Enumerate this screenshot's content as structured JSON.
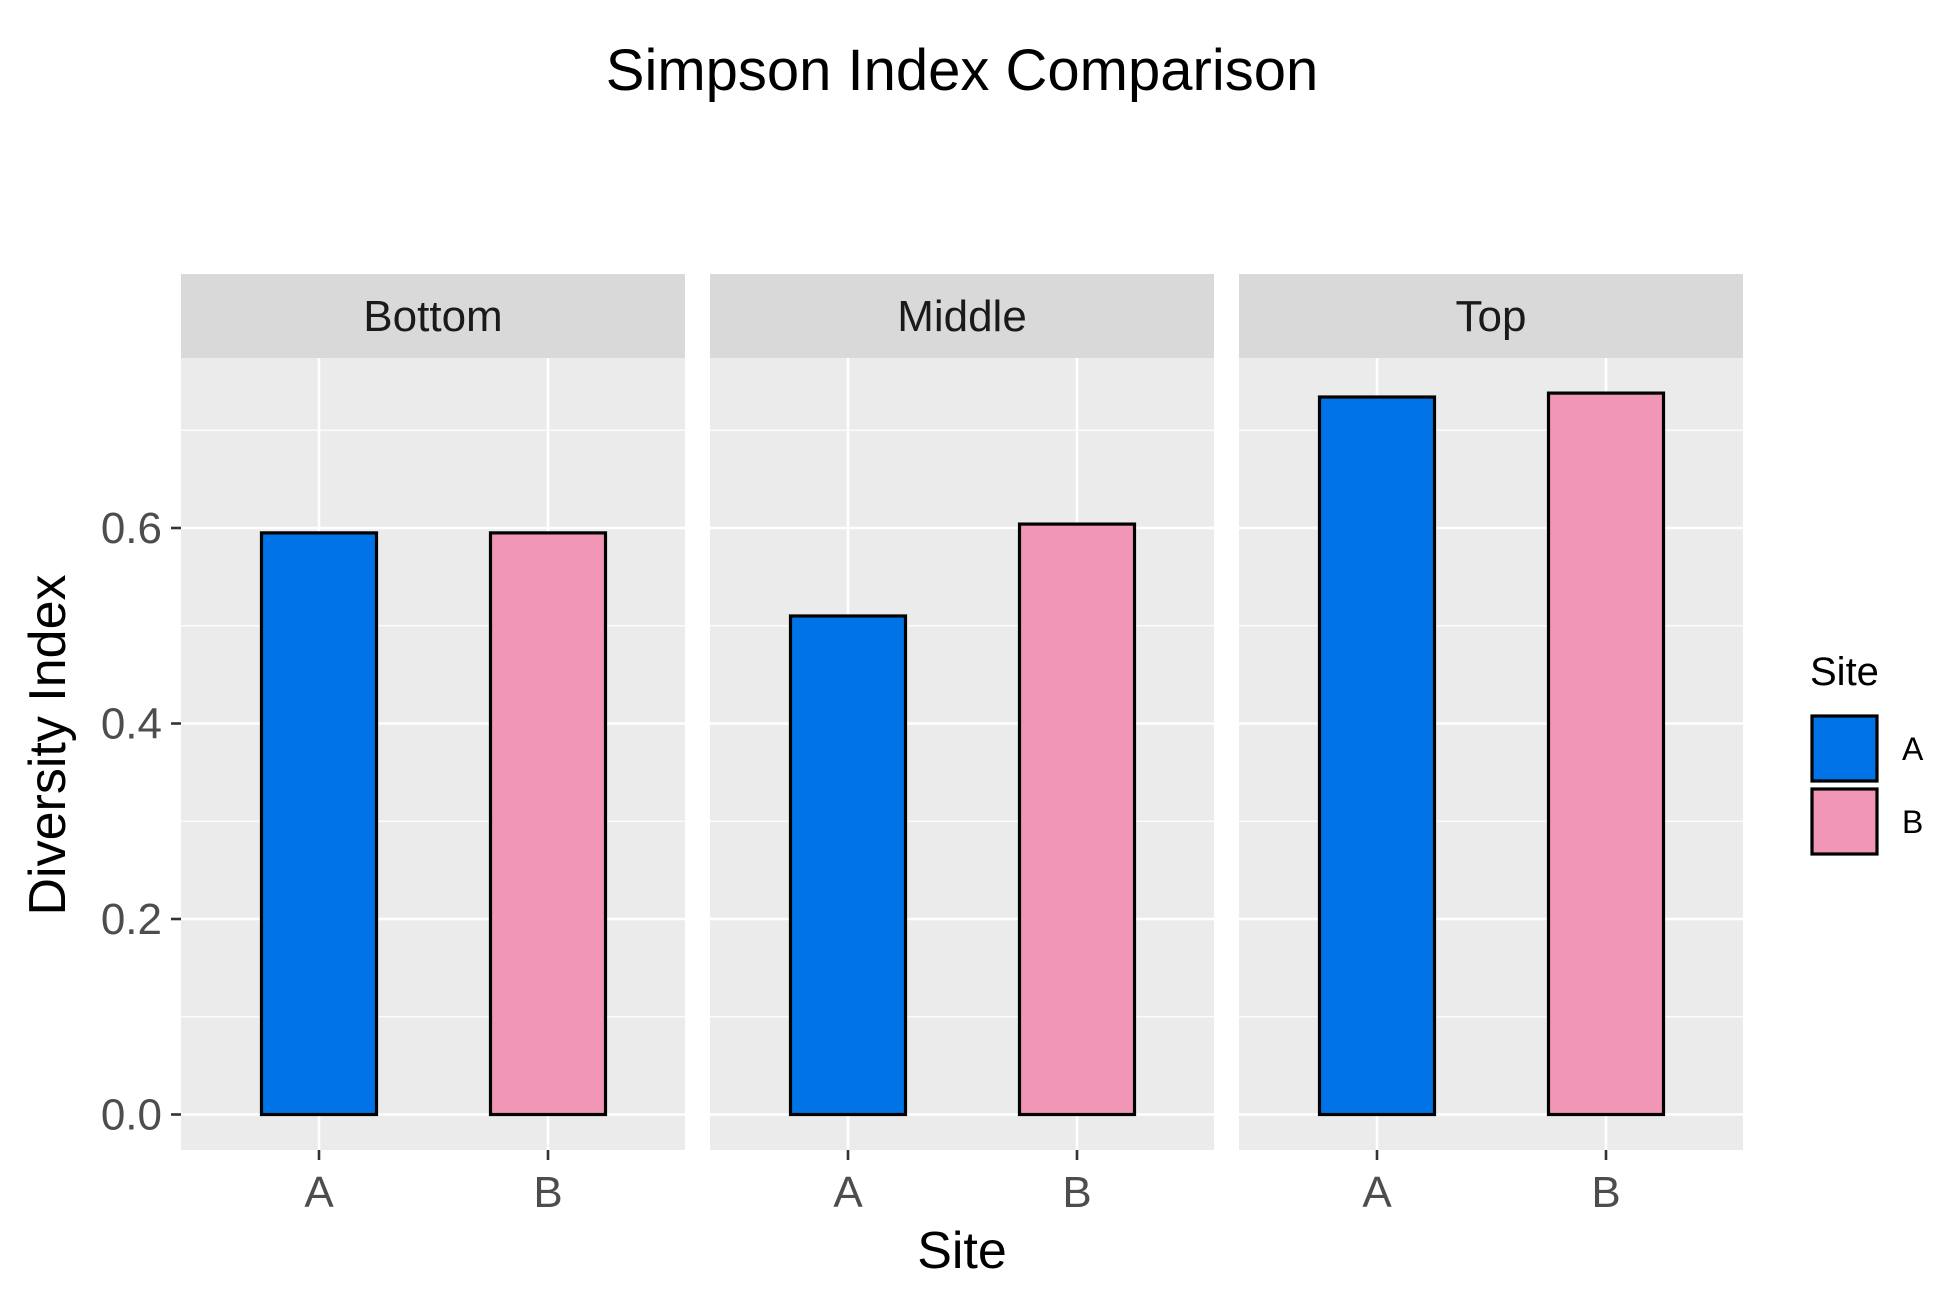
{
  "chart_data": {
    "type": "bar",
    "title": "Simpson Index Comparison",
    "xlabel": "Site",
    "ylabel": "Diversity Index",
    "ylim": [
      0,
      0.74
    ],
    "yticks": [
      "0.0",
      "0.2",
      "0.4",
      "0.6"
    ],
    "ytick_values": [
      0,
      0.2,
      0.4,
      0.6
    ],
    "categories": [
      "A",
      "B"
    ],
    "facets": [
      {
        "name": "Bottom",
        "values": [
          0.595,
          0.595
        ]
      },
      {
        "name": "Middle",
        "values": [
          0.51,
          0.604
        ]
      },
      {
        "name": "Top",
        "values": [
          0.734,
          0.738
        ]
      }
    ],
    "legend": {
      "title": "Site",
      "position": "right",
      "entries": [
        {
          "label": "A",
          "color": "#0073E6"
        },
        {
          "label": "B",
          "color": "#F296B8"
        }
      ]
    },
    "grid": true
  }
}
